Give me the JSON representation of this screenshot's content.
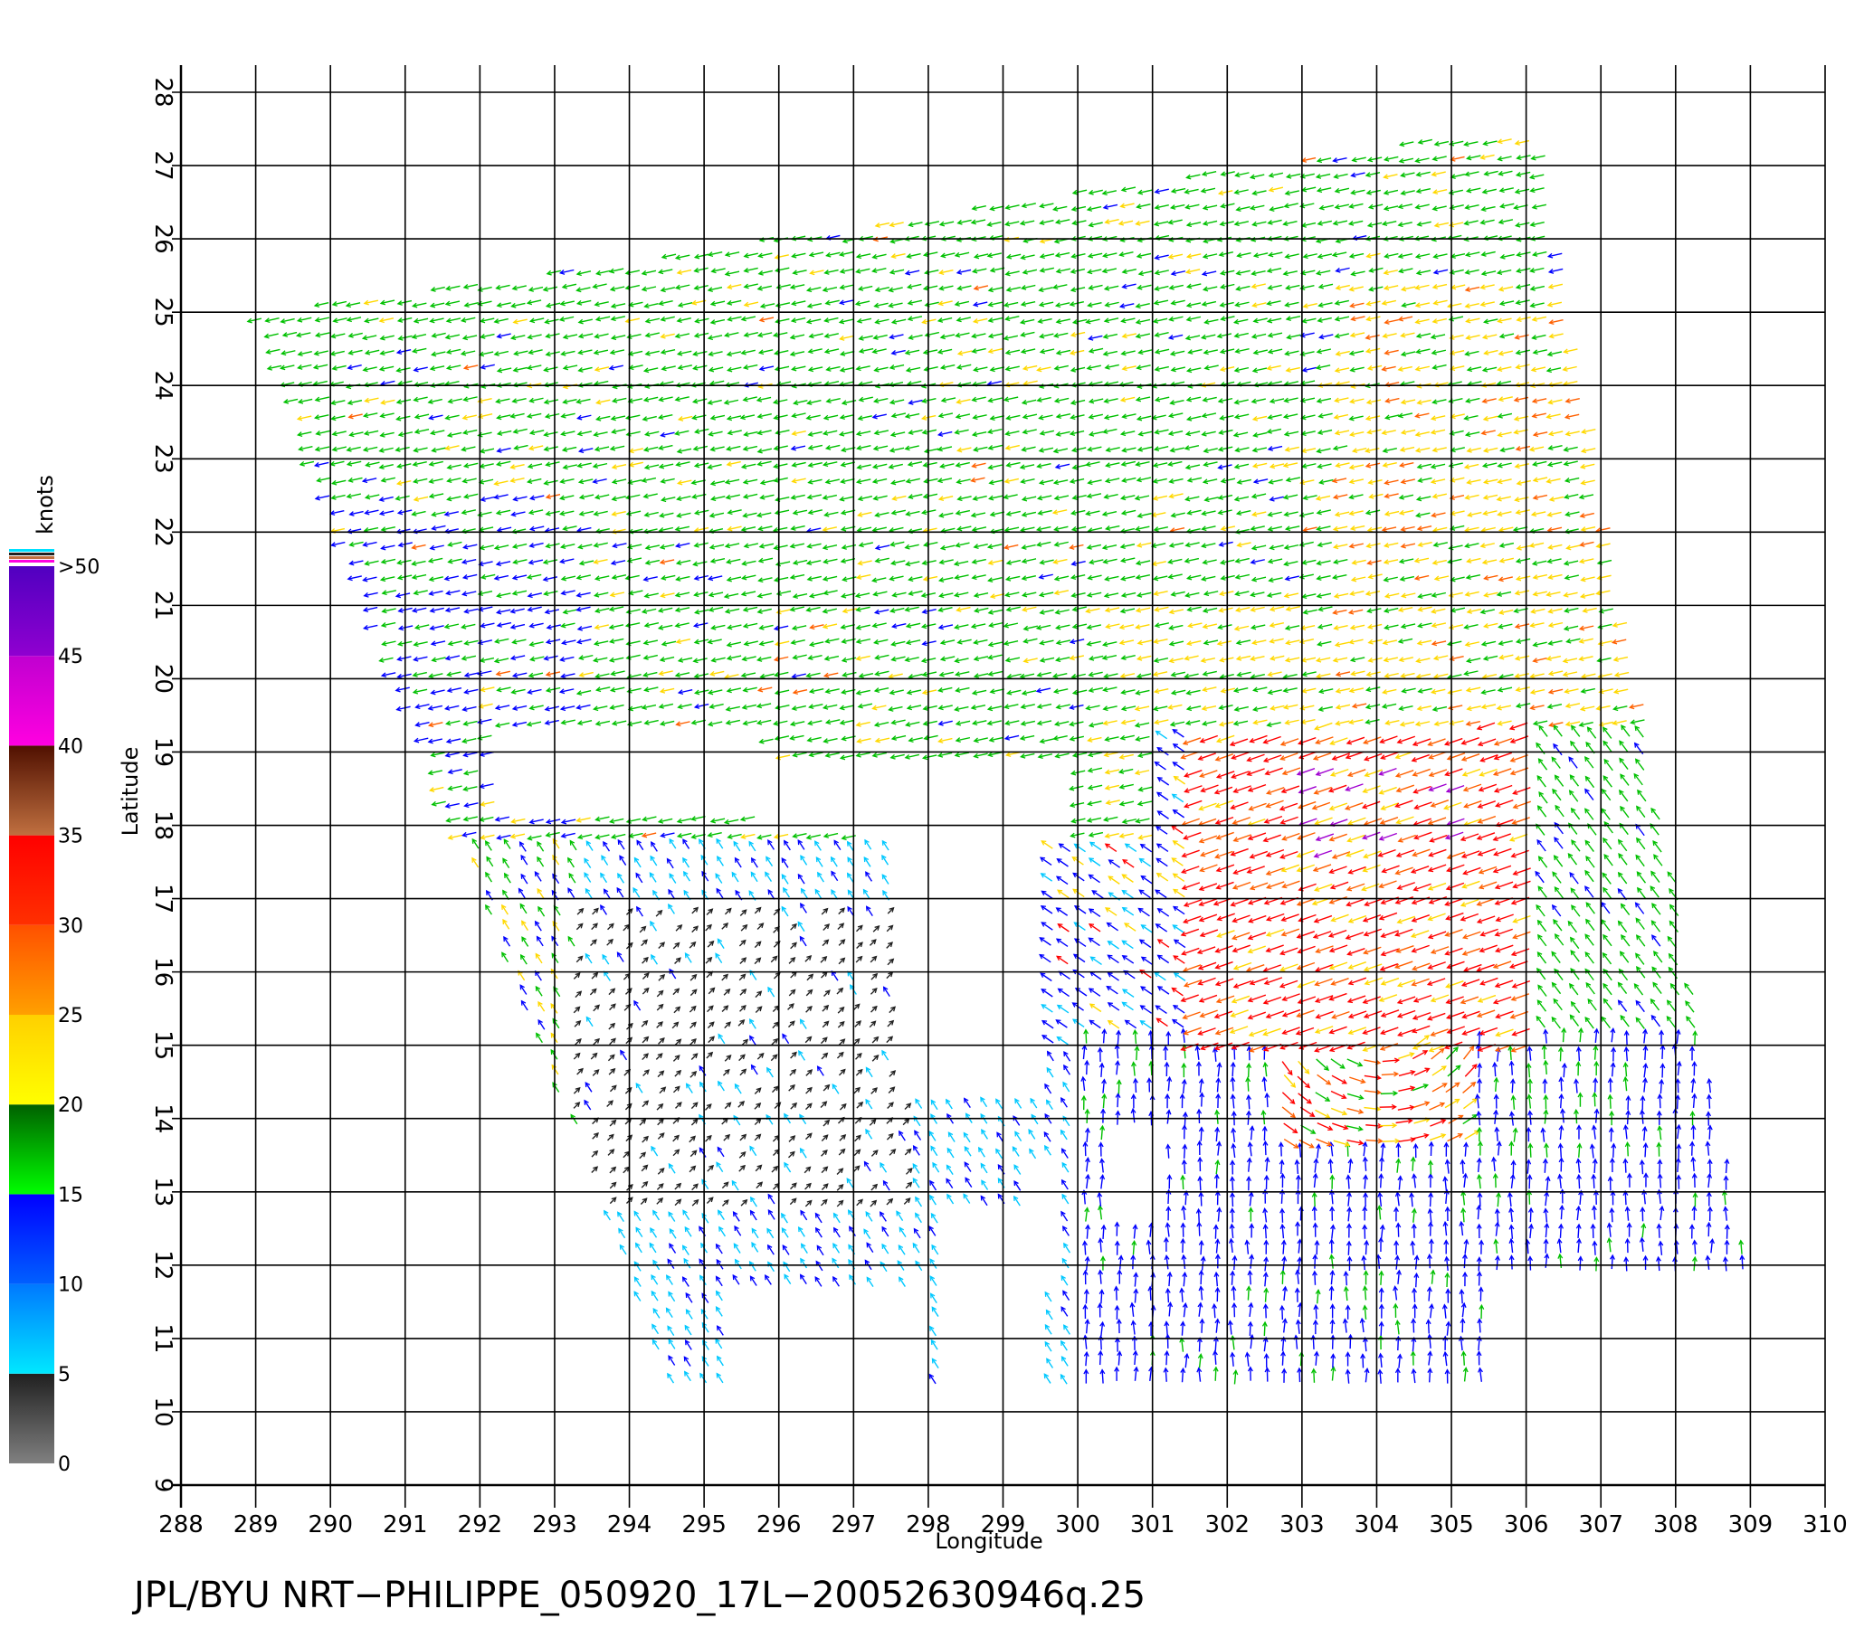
{
  "chart_data": {
    "type": "wind-vector",
    "footer": "JPL/BYU  NRT−PHILIPPE_050920_17L−20052630946q.25",
    "xlabel": "Longitude",
    "ylabel": "Latitude",
    "xlim": [
      288,
      310
    ],
    "ylim": [
      9,
      28
    ],
    "x_ticks": [
      "288",
      "289",
      "290",
      "291",
      "292",
      "293",
      "294",
      "295",
      "296",
      "297",
      "298",
      "299",
      "300",
      "301",
      "302",
      "303",
      "304",
      "305",
      "306",
      "307",
      "308",
      "309",
      "310"
    ],
    "y_ticks": [
      "9",
      "10",
      "11",
      "12",
      "13",
      "14",
      "15",
      "16",
      "17",
      "18",
      "19",
      "20",
      "21",
      "22",
      "23",
      "24",
      "25",
      "26",
      "27",
      "28"
    ],
    "grid": true,
    "colorbar": {
      "title": "knots",
      "labels": [
        ">50",
        "45",
        "40",
        "35",
        "30",
        "25",
        "20",
        "15",
        "10",
        "5",
        "0"
      ],
      "bands": [
        {
          "from": 0,
          "to": 5,
          "top": "#202020",
          "bottom": "#808080"
        },
        {
          "from": 5,
          "to": 10,
          "top": "#0078ff",
          "bottom": "#00e8ff"
        },
        {
          "from": 10,
          "to": 15,
          "top": "#0000ff",
          "bottom": "#0060ff"
        },
        {
          "from": 15,
          "to": 20,
          "top": "#006000",
          "bottom": "#00ff00"
        },
        {
          "from": 20,
          "to": 25,
          "top": "#ffd000",
          "bottom": "#ffff00"
        },
        {
          "from": 25,
          "to": 30,
          "top": "#ff5000",
          "bottom": "#ffa000"
        },
        {
          "from": 30,
          "to": 35,
          "top": "#ff0000",
          "bottom": "#ff3000"
        },
        {
          "from": 35,
          "to": 40,
          "top": "#501000",
          "bottom": "#c07040"
        },
        {
          "from": 40,
          "to": 45,
          "top": "#c000d0",
          "bottom": "#ff00e0"
        },
        {
          "from": 45,
          "to": 50,
          "top": "#5000c0",
          "bottom": "#9000d0"
        }
      ]
    },
    "speed_colors": {
      "calm": "#202020",
      "light": "#00c8ff",
      "moderate": "#0000ff",
      "fresh": "#00c000",
      "strong": "#ffd800",
      "gale": "#ff6000",
      "storm": "#ff0000",
      "violent": "#a000d0"
    },
    "storm_center": {
      "lon": 304.0,
      "lat": 15.7
    }
  }
}
